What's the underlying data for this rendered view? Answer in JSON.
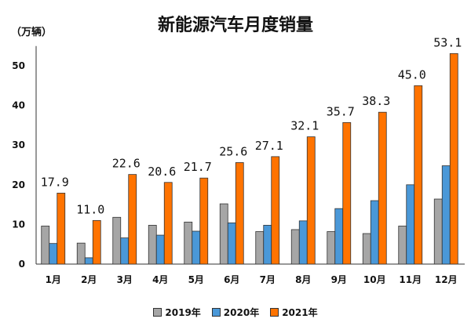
{
  "chart_data": {
    "type": "bar",
    "title": "新能源汽车月度销量",
    "ylabel": "（万辆）",
    "categories": [
      "1月",
      "2月",
      "3月",
      "4月",
      "5月",
      "6月",
      "7月",
      "8月",
      "9月",
      "10月",
      "11月",
      "12月"
    ],
    "series": [
      {
        "name": "2019年",
        "color": "#a6a6a6",
        "values": [
          9.6,
          5.3,
          11.8,
          9.8,
          10.6,
          15.2,
          8.2,
          8.7,
          8.2,
          7.7,
          9.6,
          16.4
        ]
      },
      {
        "name": "2020年",
        "color": "#4a98d8",
        "values": [
          5.2,
          1.6,
          6.6,
          7.3,
          8.3,
          10.4,
          9.8,
          10.9,
          14.0,
          16.0,
          20.0,
          24.8
        ]
      },
      {
        "name": "2021年",
        "color": "#ff7300",
        "values": [
          17.9,
          11.0,
          22.6,
          20.6,
          21.7,
          25.6,
          27.1,
          32.1,
          35.7,
          38.3,
          45.0,
          53.1
        ],
        "data_labels": [
          "17.9",
          "11.0",
          "22.6",
          "20.6",
          "21.7",
          "25.6",
          "27.1",
          "32.1",
          "35.7",
          "38.3",
          "45.0",
          "53.1"
        ]
      }
    ],
    "ylim": [
      0,
      55
    ],
    "yticks": [
      "0",
      "10",
      "20",
      "30",
      "40",
      "50"
    ],
    "grid": false,
    "legend_position": "bottom"
  }
}
